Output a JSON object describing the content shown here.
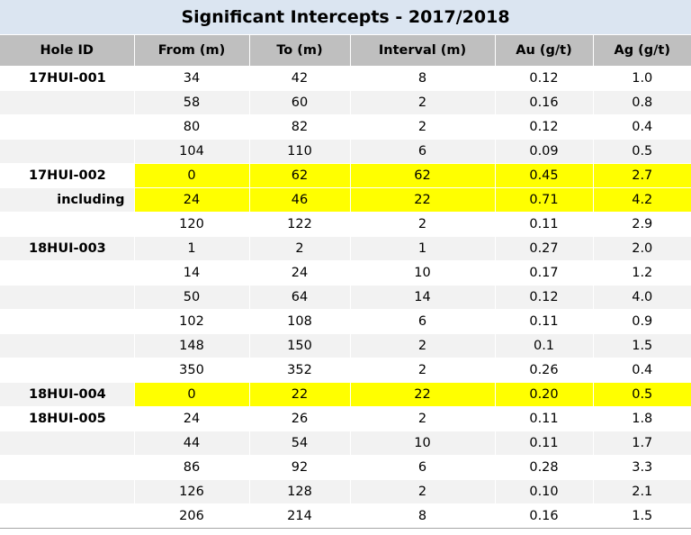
{
  "title": "Significant Intercepts - 2017/2018",
  "columns": [
    "Hole ID",
    "From (m)",
    "To (m)",
    "Interval (m)",
    "Au (g/t)",
    "Ag (g/t)"
  ],
  "rows": [
    {
      "hole": "17HUI-001",
      "from": "34",
      "to": "42",
      "interval": "8",
      "au": "0.12",
      "ag": "1.0"
    },
    {
      "hole": "",
      "from": "58",
      "to": "60",
      "interval": "2",
      "au": "0.16",
      "ag": "0.8"
    },
    {
      "hole": "",
      "from": "80",
      "to": "82",
      "interval": "2",
      "au": "0.12",
      "ag": "0.4"
    },
    {
      "hole": "",
      "from": "104",
      "to": "110",
      "interval": "6",
      "au": "0.09",
      "ag": "0.5"
    },
    {
      "hole": "17HUI-002",
      "from": "0",
      "to": "62",
      "interval": "62",
      "au": "0.45",
      "ag": "2.7"
    },
    {
      "hole": "including",
      "from": "24",
      "to": "46",
      "interval": "22",
      "au": "0.71",
      "ag": "4.2"
    },
    {
      "hole": "",
      "from": "120",
      "to": "122",
      "interval": "2",
      "au": "0.11",
      "ag": "2.9"
    },
    {
      "hole": "18HUI-003",
      "from": "1",
      "to": "2",
      "interval": "1",
      "au": "0.27",
      "ag": "2.0"
    },
    {
      "hole": "",
      "from": "14",
      "to": "24",
      "interval": "10",
      "au": "0.17",
      "ag": "1.2"
    },
    {
      "hole": "",
      "from": "50",
      "to": "64",
      "interval": "14",
      "au": "0.12",
      "ag": "4.0"
    },
    {
      "hole": "",
      "from": "102",
      "to": "108",
      "interval": "6",
      "au": "0.11",
      "ag": "0.9"
    },
    {
      "hole": "",
      "from": "148",
      "to": "150",
      "interval": "2",
      "au": "0.1",
      "ag": "1.5"
    },
    {
      "hole": "",
      "from": "350",
      "to": "352",
      "interval": "2",
      "au": "0.26",
      "ag": "0.4"
    },
    {
      "hole": "18HUI-004",
      "from": "0",
      "to": "22",
      "interval": "22",
      "au": "0.20",
      "ag": "0.5"
    },
    {
      "hole": "18HUI-005",
      "from": "24",
      "to": "26",
      "interval": "2",
      "au": "0.11",
      "ag": "1.8"
    },
    {
      "hole": "",
      "from": "44",
      "to": "54",
      "interval": "10",
      "au": "0.11",
      "ag": "1.7"
    },
    {
      "hole": "",
      "from": "86",
      "to": "92",
      "interval": "6",
      "au": "0.28",
      "ag": "3.3"
    },
    {
      "hole": "",
      "from": "126",
      "to": "128",
      "interval": "2",
      "au": "0.10",
      "ag": "2.1"
    },
    {
      "hole": "",
      "from": "206",
      "to": "214",
      "interval": "8",
      "au": "0.16",
      "ag": "1.5"
    }
  ],
  "highlighted_rows": [
    4,
    5,
    13
  ],
  "colors": {
    "title_background": "#dbe5f1",
    "header_background": "#bfbfbf",
    "stripe": "#f2f2f2",
    "highlight": "#ffff00"
  }
}
